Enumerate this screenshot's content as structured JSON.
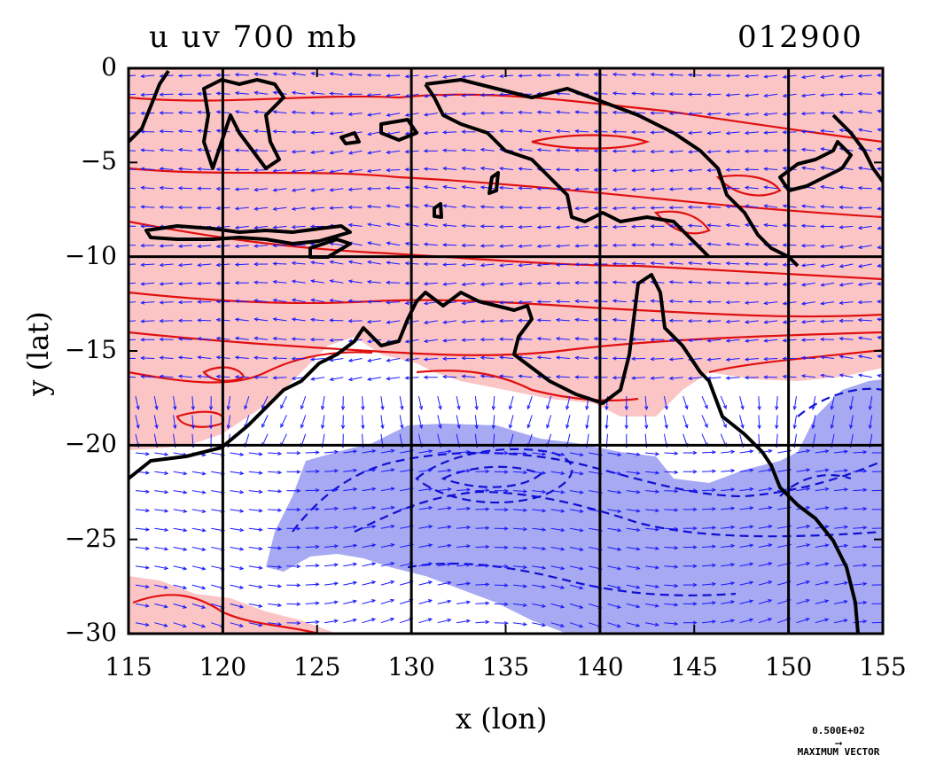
{
  "titles": {
    "left": "u uv 700 mb",
    "right": "012900"
  },
  "axes": {
    "xlabel": "x (lon)",
    "ylabel": "y (lat)",
    "x_ticks": [
      "115",
      "120",
      "125",
      "130",
      "135",
      "140",
      "145",
      "150",
      "155"
    ],
    "y_ticks": [
      "0",
      "−5",
      "−10",
      "−15",
      "−20",
      "−25",
      "−30"
    ]
  },
  "map": {
    "lon_range": [
      115,
      155
    ],
    "lat_range": [
      -30,
      0
    ],
    "gridlines_lon": [
      120,
      130,
      140,
      150
    ],
    "gridlines_lat": [
      -10,
      -20
    ],
    "positive_fill": "#fbc5c5",
    "positive_line": "#e01010",
    "negative_fill": "#a7a9f2",
    "negative_line": "#1010d0",
    "vector_color": "#1a1aff",
    "coast_color": "#000000"
  },
  "reference_vector": {
    "value": "0.500E+02",
    "label": "MAXIMUM VECTOR"
  }
}
